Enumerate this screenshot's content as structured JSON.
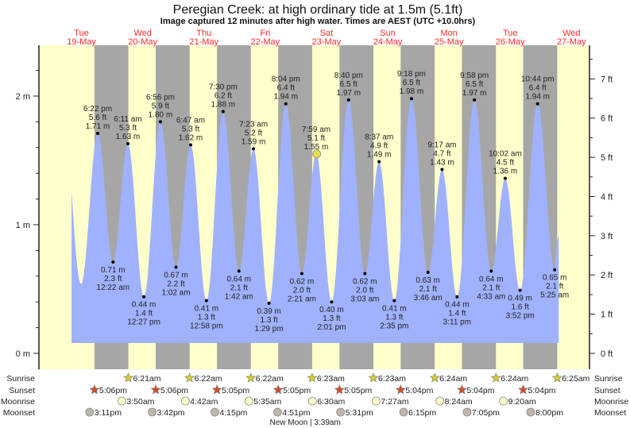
{
  "chart_data": {
    "type": "area",
    "title": "Peregian Creek: at high  ordinary tide at 1.5m (5.1ft)",
    "subtitle": "Image captured 12 minutes after high water. Times are AEST (UTC +10.0hrs)",
    "days": [
      {
        "dow": "Tue",
        "date": "19-May"
      },
      {
        "dow": "Wed",
        "date": "20-May"
      },
      {
        "dow": "Thu",
        "date": "21-May"
      },
      {
        "dow": "Fri",
        "date": "22-May"
      },
      {
        "dow": "Sat",
        "date": "23-May"
      },
      {
        "dow": "Sun",
        "date": "24-May"
      },
      {
        "dow": "Mon",
        "date": "25-May"
      },
      {
        "dow": "Tue",
        "date": "26-May"
      },
      {
        "dow": "Wed",
        "date": "27-May"
      }
    ],
    "y_left": {
      "unit": "m",
      "ticks": [
        "0 m",
        "1 m",
        "2 m"
      ],
      "range_m": [
        -0.12,
        2.4
      ]
    },
    "y_right": {
      "unit": "ft",
      "ticks": [
        "0 ft",
        "1 ft",
        "2 ft",
        "3 ft",
        "4 ft",
        "5 ft",
        "6 ft",
        "7 ft"
      ]
    },
    "curve_start": {
      "date": "19-May",
      "time": "8:05 am",
      "m": 1.27
    },
    "curve_end": {
      "date": "27-May",
      "time": "7:00 am",
      "m": 0.91
    },
    "unlabeled_extremes": [
      {
        "date": "19-May",
        "time": "11:50 am",
        "m": 0.54,
        "type": "low"
      }
    ],
    "tides": [
      {
        "type": "high",
        "date": "19-May",
        "time": "6:22 pm",
        "ft": "5.6 ft",
        "m": 1.71
      },
      {
        "type": "low",
        "date": "20-May",
        "time": "12:22 am",
        "ft": "2.3 ft",
        "m": 0.71
      },
      {
        "type": "high",
        "date": "20-May",
        "time": "6:11 am",
        "ft": "5.3 ft",
        "m": 1.63
      },
      {
        "type": "low",
        "date": "20-May",
        "time": "12:27 pm",
        "ft": "1.4 ft",
        "m": 0.44
      },
      {
        "type": "high",
        "date": "20-May",
        "time": "6:56 pm",
        "ft": "5.9 ft",
        "m": 1.8
      },
      {
        "type": "low",
        "date": "21-May",
        "time": "1:02 am",
        "ft": "2.2 ft",
        "m": 0.67
      },
      {
        "type": "high",
        "date": "21-May",
        "time": "6:47 am",
        "ft": "5.3 ft",
        "m": 1.62
      },
      {
        "type": "low",
        "date": "21-May",
        "time": "12:58 pm",
        "ft": "1.3 ft",
        "m": 0.41
      },
      {
        "type": "high",
        "date": "21-May",
        "time": "7:30 pm",
        "ft": "6.2 ft",
        "m": 1.88
      },
      {
        "type": "low",
        "date": "22-May",
        "time": "1:42 am",
        "ft": "2.1 ft",
        "m": 0.64
      },
      {
        "type": "high",
        "date": "22-May",
        "time": "7:23 am",
        "ft": "5.2 ft",
        "m": 1.59
      },
      {
        "type": "low",
        "date": "22-May",
        "time": "1:29 pm",
        "ft": "1.3 ft",
        "m": 0.39
      },
      {
        "type": "high",
        "date": "22-May",
        "time": "8:04 pm",
        "ft": "6.4 ft",
        "m": 1.94
      },
      {
        "type": "low",
        "date": "23-May",
        "time": "2:21 am",
        "ft": "2.0 ft",
        "m": 0.62
      },
      {
        "type": "high",
        "date": "23-May",
        "time": "7:59 am",
        "ft": "5.1 ft",
        "m": 1.55
      },
      {
        "type": "low",
        "date": "23-May",
        "time": "2:01 pm",
        "ft": "1.3 ft",
        "m": 0.4
      },
      {
        "type": "high",
        "date": "23-May",
        "time": "8:40 pm",
        "ft": "6.5 ft",
        "m": 1.97
      },
      {
        "type": "low",
        "date": "24-May",
        "time": "3:03 am",
        "ft": "2.0 ft",
        "m": 0.62
      },
      {
        "type": "high",
        "date": "24-May",
        "time": "8:37 am",
        "ft": "4.9 ft",
        "m": 1.49
      },
      {
        "type": "low",
        "date": "24-May",
        "time": "2:35 pm",
        "ft": "1.3 ft",
        "m": 0.41
      },
      {
        "type": "high",
        "date": "24-May",
        "time": "9:18 pm",
        "ft": "6.5 ft",
        "m": 1.98
      },
      {
        "type": "low",
        "date": "25-May",
        "time": "3:46 am",
        "ft": "2.1 ft",
        "m": 0.63
      },
      {
        "type": "high",
        "date": "25-May",
        "time": "9:17 am",
        "ft": "4.7 ft",
        "m": 1.43
      },
      {
        "type": "low",
        "date": "25-May",
        "time": "3:11 pm",
        "ft": "1.4 ft",
        "m": 0.44
      },
      {
        "type": "high",
        "date": "25-May",
        "time": "9:58 pm",
        "ft": "6.5 ft",
        "m": 1.97
      },
      {
        "type": "low",
        "date": "26-May",
        "time": "4:33 am",
        "ft": "2.1 ft",
        "m": 0.64
      },
      {
        "type": "high",
        "date": "26-May",
        "time": "10:02 am",
        "ft": "4.5 ft",
        "m": 1.36
      },
      {
        "type": "low",
        "date": "26-May",
        "time": "3:52 pm",
        "ft": "1.6 ft",
        "m": 0.49
      },
      {
        "type": "high",
        "date": "26-May",
        "time": "10:44 pm",
        "ft": "6.4 ft",
        "m": 1.94
      },
      {
        "type": "low",
        "date": "27-May",
        "time": "5:25 am",
        "ft": "2.1 ft",
        "m": 0.65
      }
    ],
    "capture_marker": {
      "date": "23-May",
      "time": "8:11 am",
      "m": 1.55
    },
    "rows": {
      "sunrise": {
        "label": "Sunrise",
        "events": [
          {
            "date": "20-May",
            "time": "6:21am"
          },
          {
            "date": "21-May",
            "time": "6:22am"
          },
          {
            "date": "22-May",
            "time": "6:22am"
          },
          {
            "date": "23-May",
            "time": "6:23am"
          },
          {
            "date": "24-May",
            "time": "6:23am"
          },
          {
            "date": "25-May",
            "time": "6:24am"
          },
          {
            "date": "26-May",
            "time": "6:24am"
          },
          {
            "date": "27-May",
            "time": "6:25am"
          }
        ]
      },
      "sunset": {
        "label": "Sunset",
        "events": [
          {
            "date": "19-May",
            "time": "5:06pm"
          },
          {
            "date": "20-May",
            "time": "5:06pm"
          },
          {
            "date": "21-May",
            "time": "5:05pm"
          },
          {
            "date": "22-May",
            "time": "5:05pm"
          },
          {
            "date": "23-May",
            "time": "5:05pm"
          },
          {
            "date": "24-May",
            "time": "5:04pm"
          },
          {
            "date": "25-May",
            "time": "5:04pm"
          },
          {
            "date": "26-May",
            "time": "5:04pm"
          }
        ]
      },
      "moonrise": {
        "label": "Moonrise",
        "events": [
          {
            "date": "20-May",
            "time": "3:50am"
          },
          {
            "date": "21-May",
            "time": "4:42am"
          },
          {
            "date": "22-May",
            "time": "5:35am"
          },
          {
            "date": "23-May",
            "time": "6:30am"
          },
          {
            "date": "24-May",
            "time": "7:27am"
          },
          {
            "date": "25-May",
            "time": "8:24am"
          },
          {
            "date": "26-May",
            "time": "9:20am"
          }
        ]
      },
      "moonset": {
        "label": "Moonset",
        "events": [
          {
            "date": "19-May",
            "time": "3:11pm"
          },
          {
            "date": "20-May",
            "time": "3:42pm"
          },
          {
            "date": "21-May",
            "time": "4:15pm"
          },
          {
            "date": "22-May",
            "time": "4:51pm"
          },
          {
            "date": "23-May",
            "time": "5:31pm"
          },
          {
            "date": "24-May",
            "time": "6:15pm"
          },
          {
            "date": "25-May",
            "time": "7:05pm"
          },
          {
            "date": "26-May",
            "time": "8:00pm"
          }
        ]
      }
    },
    "moon_phase": {
      "date": "23-May",
      "text": "New Moon | 3:39am"
    },
    "colors": {
      "day": "#ffffcc",
      "night": "#a6a6a6",
      "water": "#a0b2ff",
      "day_label": "#ff2a2a",
      "sunrise": "#d4cc30",
      "sunset": "#d0502a",
      "moonrise": "#ffffcc",
      "moonset": "#bdb8a8",
      "marker": "#e8e040"
    }
  }
}
